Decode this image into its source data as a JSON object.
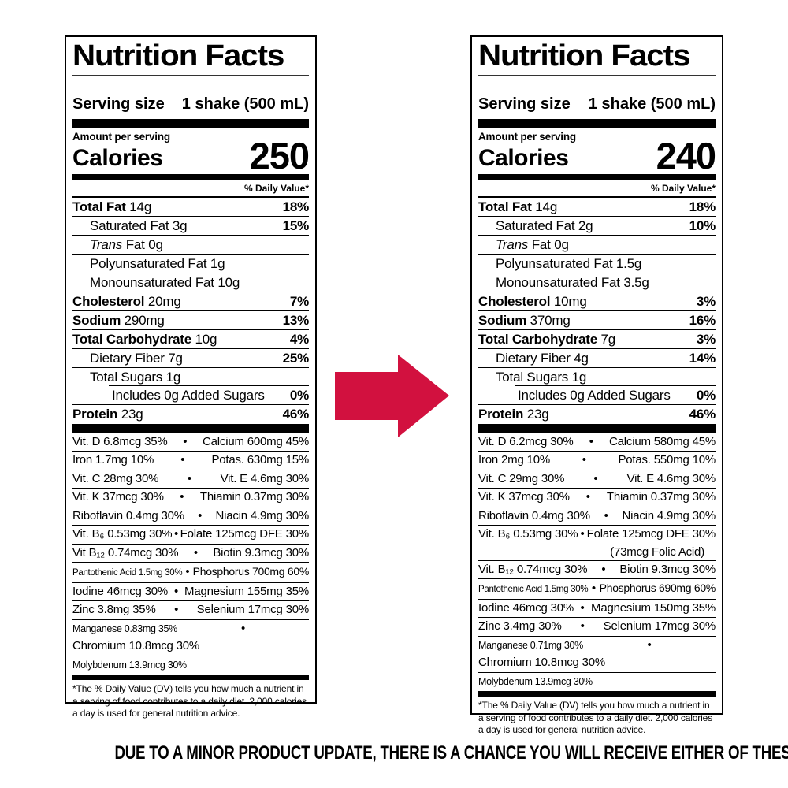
{
  "labels": [
    {
      "title": "Nutrition Facts",
      "serving_label": "Serving size",
      "serving_value": "1 shake (500 mL)",
      "amount_per_serving": "Amount per serving",
      "calories_label": "Calories",
      "calories": "250",
      "daily_value_header": "% Daily Value*",
      "nutrients": [
        {
          "bold": "Total Fat",
          "text": " 14g",
          "dv": "18%",
          "indent": 0
        },
        {
          "text": "Saturated Fat 3g",
          "dv": "15%",
          "indent": 1
        },
        {
          "italic": "Trans",
          "text": " Fat 0g",
          "indent": 1
        },
        {
          "text": "Polyunsaturated Fat 1g",
          "indent": 1
        },
        {
          "text": "Monounsaturated Fat 10g",
          "indent": 1
        },
        {
          "bold": "Cholesterol",
          "text": " 20mg",
          "dv": "7%",
          "indent": 0
        },
        {
          "bold": "Sodium",
          "text": " 290mg",
          "dv": "13%",
          "indent": 0
        },
        {
          "bold": "Total Carbohydrate",
          "text": " 10g",
          "dv": "4%",
          "indent": 0
        },
        {
          "text": "Dietary Fiber 7g",
          "dv": "25%",
          "indent": 1
        },
        {
          "text": "Total Sugars 1g",
          "indent": 1
        },
        {
          "text": "Includes 0g Added Sugars",
          "dv": "0%",
          "indent": 2,
          "inset_rule": true
        },
        {
          "bold": "Protein",
          "text": " 23g",
          "dv": "46%",
          "indent": 0
        }
      ],
      "micronutrients": [
        {
          "left": "Vit. D 6.8mcg 35%",
          "right": "Calcium 600mg 45%"
        },
        {
          "left": "Iron 1.7mg 10%",
          "right": "Potas. 630mg 15%"
        },
        {
          "left": "Vit. C 28mg 30%",
          "right": "Vit. E 4.6mg 30%"
        },
        {
          "left": "Vit. K 37mcg 30%",
          "right": "Thiamin 0.37mg 30%"
        },
        {
          "left": "Riboflavin 0.4mg 30%",
          "right": "Niacin 4.9mg 30%"
        },
        {
          "left": "Vit. B₆ 0.53mg 30%",
          "right": "Folate 125mcg DFE 30%"
        },
        {
          "left": "Vit B₁₂ 0.74mcg 30%",
          "right": "Biotin 9.3mcg 30%"
        },
        {
          "left": "Pantothenic Acid 1.5mg 30%",
          "right": "Phosphorus 700mg 60%",
          "left_size": "xsmall",
          "right_size": "mr-sm"
        },
        {
          "left": "Iodine 46mcg 30%",
          "right": "Magnesium 155mg 35%"
        },
        {
          "left": "Zinc 3.8mg 35%",
          "right": "Selenium 17mcg 30%"
        },
        {
          "left": "Manganese 0.83mg 35%",
          "right": "Chromium 10.8mcg 30%",
          "left_size": "small"
        },
        {
          "left": "Molybdenum 13.9mcg 30%",
          "left_size": "small"
        }
      ],
      "footnote": "*The % Daily Value (DV) tells you how much a nutrient in a serving of food contributes to a daily diet. 2,000 calories a day is used for general nutrition advice."
    },
    {
      "title": "Nutrition Facts",
      "serving_label": "Serving size",
      "serving_value": "1 shake (500 mL)",
      "amount_per_serving": "Amount per serving",
      "calories_label": "Calories",
      "calories": "240",
      "daily_value_header": "% Daily Value*",
      "nutrients": [
        {
          "bold": "Total Fat",
          "text": " 14g",
          "dv": "18%",
          "indent": 0
        },
        {
          "text": "Saturated Fat 2g",
          "dv": "10%",
          "indent": 1
        },
        {
          "italic": "Trans",
          "text": " Fat 0g",
          "indent": 1
        },
        {
          "text": "Polyunsaturated Fat 1.5g",
          "indent": 1
        },
        {
          "text": "Monounsaturated Fat 3.5g",
          "indent": 1
        },
        {
          "bold": "Cholesterol",
          "text": " 10mg",
          "dv": "3%",
          "indent": 0
        },
        {
          "bold": "Sodium",
          "text": " 370mg",
          "dv": "16%",
          "indent": 0
        },
        {
          "bold": "Total Carbohydrate",
          "text": " 7g",
          "dv": "3%",
          "indent": 0
        },
        {
          "text": "Dietary Fiber 4g",
          "dv": "14%",
          "indent": 1
        },
        {
          "text": "Total Sugars 1g",
          "indent": 1
        },
        {
          "text": "Includes 0g Added Sugars",
          "dv": "0%",
          "indent": 2,
          "inset_rule": true
        },
        {
          "bold": "Protein",
          "text": " 23g",
          "dv": "46%",
          "indent": 0
        }
      ],
      "micronutrients": [
        {
          "left": "Vit. D 6.2mcg 30%",
          "right": "Calcium 580mg 45%"
        },
        {
          "left": "Iron 2mg 10%",
          "right": "Potas. 550mg 10%"
        },
        {
          "left": "Vit. C 29mg 30%",
          "right": "Vit. E 4.6mg 30%"
        },
        {
          "left": "Vit. K 37mcg 30%",
          "right": "Thiamin 0.37mg 30%"
        },
        {
          "left": "Riboflavin 0.4mg 30%",
          "right": "Niacin 4.9mg 30%"
        },
        {
          "left": "Vit. B₆ 0.53mg 30%",
          "right": "Folate 125mcg DFE 30%",
          "right_sub": "(73mcg Folic Acid)"
        },
        {
          "left": "Vit. B₁₂ 0.74mcg 30%",
          "right": "Biotin 9.3mcg 30%"
        },
        {
          "left": "Pantothenic Acid 1.5mg 30%",
          "right": "Phosphorus 690mg 60%",
          "left_size": "xsmall",
          "right_size": "mr-sm"
        },
        {
          "left": "Iodine 46mcg 30%",
          "right": "Magnesium 150mg 35%"
        },
        {
          "left": "Zinc 3.4mg 30%",
          "right": "Selenium 17mcg 30%"
        },
        {
          "left": "Manganese 0.71mg 30%",
          "right": "Chromium 10.8mcg 30%",
          "left_size": "small"
        },
        {
          "left": "Molybdenum 13.9mcg 30%",
          "left_size": "small"
        }
      ],
      "footnote": "*The % Daily Value (DV) tells you how much a nutrient in a serving of food contributes to a daily diet. 2,000 calories a day is used for general nutrition advice."
    }
  ],
  "arrow": {
    "color": "#d2113f",
    "direction": "right"
  },
  "caption": "DUE TO A MINOR PRODUCT UPDATE, THERE IS A CHANCE YOU WILL RECEIVE EITHER OF THESE TWO PRODUCTS."
}
